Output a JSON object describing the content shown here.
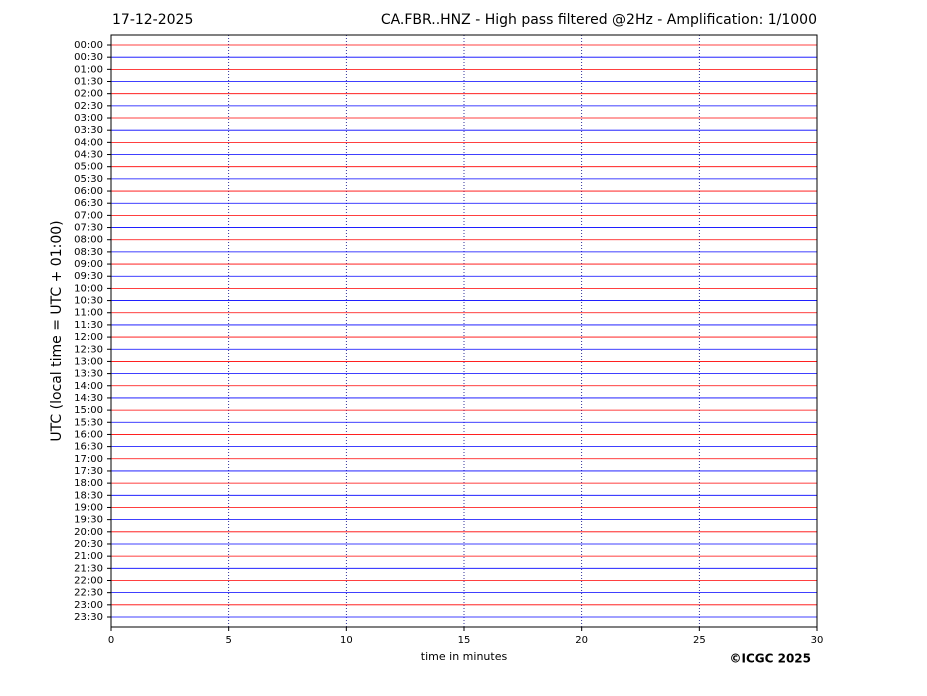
{
  "chart_data": {
    "type": "helicorder",
    "date": "17-12-2025",
    "title": "CA.FBR..HNZ - High pass filtered @2Hz - Amplification: 1/1000",
    "y_label": "UTC (local time = UTC + 01:00)",
    "x_label": "time in minutes",
    "copyright": "©ICGC 2025",
    "categories": [
      "00:00",
      "00:30",
      "01:00",
      "01:30",
      "02:00",
      "02:30",
      "03:00",
      "03:30",
      "04:00",
      "04:30",
      "05:00",
      "05:30",
      "06:00",
      "06:30",
      "07:00",
      "07:30",
      "08:00",
      "08:30",
      "09:00",
      "09:30",
      "10:00",
      "10:30",
      "11:00",
      "11:30",
      "12:00",
      "12:30",
      "13:00",
      "13:30",
      "14:00",
      "14:30",
      "15:00",
      "15:30",
      "16:00",
      "16:30",
      "17:00",
      "17:30",
      "18:00",
      "18:30",
      "19:00",
      "19:30",
      "20:00",
      "20:30",
      "21:00",
      "21:30",
      "22:00",
      "22:30",
      "23:00",
      "23:30"
    ],
    "colors": [
      "#ff0000",
      "#0000ff"
    ],
    "xlim": [
      0,
      30
    ],
    "xticks": [
      0,
      5,
      10,
      15,
      20,
      25,
      30
    ],
    "grid": true
  }
}
